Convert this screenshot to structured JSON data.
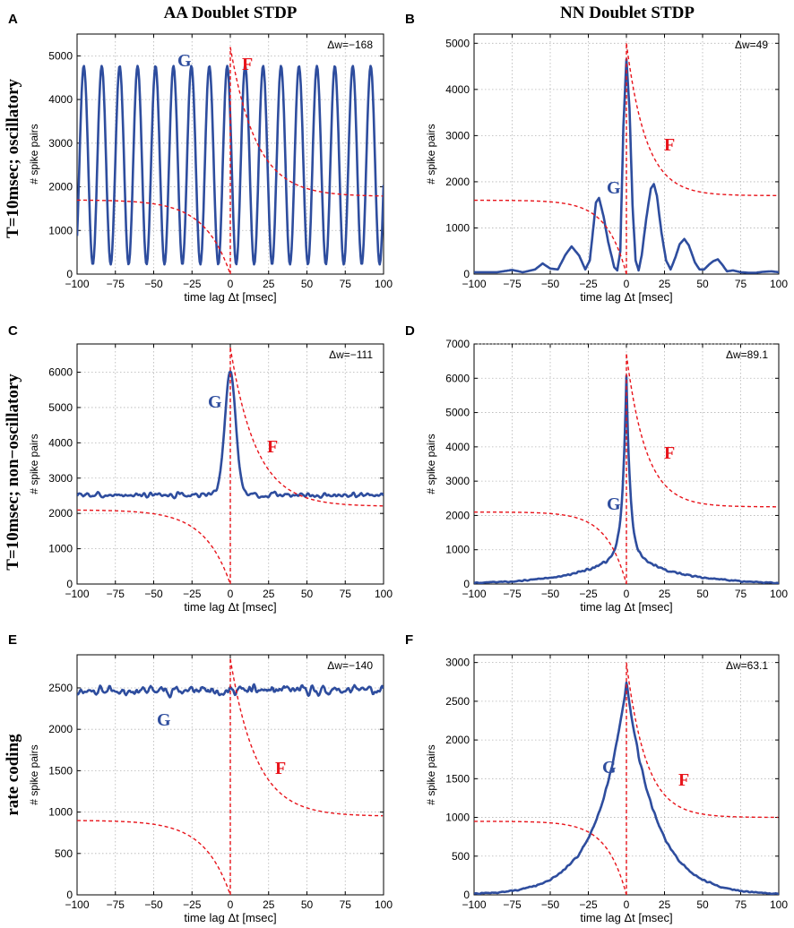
{
  "figure": {
    "column_titles": [
      "AA Doublet STDP",
      "NN Doublet STDP"
    ],
    "row_labels": [
      "T=10msec; oscillatory",
      "T=10msec; non−oscillatory",
      "rate coding"
    ]
  },
  "colors": {
    "G": "#2e4d9e",
    "F": "#e8141b",
    "grid": "#b4b4b4",
    "axis": "#000000"
  },
  "chart_data": [
    {
      "panel": "A",
      "type": "line",
      "xlabel": "time lag Δt [msec]",
      "ylabel": "# spike pairs",
      "xlim": [
        -100,
        100
      ],
      "ylim": [
        0,
        5500
      ],
      "xticks": [
        -100,
        -75,
        -50,
        -25,
        0,
        25,
        50,
        75,
        100
      ],
      "yticks": [
        0,
        1000,
        2000,
        3000,
        4000,
        5000
      ],
      "annotation": "Δw=−168",
      "series": [
        {
          "name": "G",
          "model": "oscillatory",
          "params": {
            "period": 11.7,
            "phase": -2,
            "min": 220,
            "max": 4770
          }
        },
        {
          "name": "F",
          "model": "window",
          "params": {
            "A_plus": 5200,
            "A_minus": 1700,
            "tau": 17,
            "baseline": 1780
          }
        }
      ],
      "labels": {
        "G": "G",
        "F": "F"
      }
    },
    {
      "panel": "B",
      "type": "line",
      "xlabel": "time lag Δt [msec]",
      "ylabel": "# spike pairs",
      "xlim": [
        -100,
        100
      ],
      "ylim": [
        0,
        5200
      ],
      "xticks": [
        -100,
        -75,
        -50,
        -25,
        0,
        25,
        50,
        75,
        100
      ],
      "yticks": [
        0,
        1000,
        2000,
        3000,
        4000,
        5000
      ],
      "annotation": "Δw=49",
      "series": [
        {
          "name": "G",
          "model": "points",
          "points": [
            [
              -100,
              40
            ],
            [
              -85,
              40
            ],
            [
              -75,
              90
            ],
            [
              -68,
              40
            ],
            [
              -60,
              100
            ],
            [
              -55,
              230
            ],
            [
              -50,
              120
            ],
            [
              -45,
              100
            ],
            [
              -40,
              420
            ],
            [
              -36,
              600
            ],
            [
              -31,
              400
            ],
            [
              -27,
              100
            ],
            [
              -24,
              300
            ],
            [
              -20,
              1550
            ],
            [
              -18,
              1650
            ],
            [
              -15,
              1250
            ],
            [
              -12,
              700
            ],
            [
              -8,
              150
            ],
            [
              -6,
              80
            ],
            [
              -4,
              500
            ],
            [
              -2,
              3200
            ],
            [
              0,
              4650
            ],
            [
              2,
              3600
            ],
            [
              4,
              1500
            ],
            [
              6,
              300
            ],
            [
              8,
              80
            ],
            [
              10,
              400
            ],
            [
              13,
              1200
            ],
            [
              16,
              1850
            ],
            [
              18,
              1950
            ],
            [
              20,
              1700
            ],
            [
              23,
              900
            ],
            [
              26,
              300
            ],
            [
              29,
              100
            ],
            [
              32,
              350
            ],
            [
              35,
              650
            ],
            [
              38,
              760
            ],
            [
              41,
              620
            ],
            [
              45,
              250
            ],
            [
              48,
              100
            ],
            [
              51,
              100
            ],
            [
              54,
              200
            ],
            [
              57,
              280
            ],
            [
              60,
              320
            ],
            [
              63,
              200
            ],
            [
              66,
              60
            ],
            [
              70,
              80
            ],
            [
              75,
              40
            ],
            [
              80,
              30
            ],
            [
              85,
              30
            ],
            [
              90,
              50
            ],
            [
              95,
              60
            ],
            [
              100,
              40
            ]
          ]
        },
        {
          "name": "F",
          "model": "window",
          "params": {
            "A_plus": 5000,
            "A_minus": 1600,
            "tau": 13,
            "baseline": 1700
          }
        }
      ],
      "labels": {
        "G": "G",
        "F": "F"
      }
    },
    {
      "panel": "C",
      "type": "line",
      "xlabel": "time lag Δt [msec]",
      "ylabel": "# spike pairs",
      "xlim": [
        -100,
        100
      ],
      "ylim": [
        0,
        6800
      ],
      "xticks": [
        -100,
        -75,
        -50,
        -25,
        0,
        25,
        50,
        75,
        100
      ],
      "yticks": [
        0,
        1000,
        2000,
        3000,
        4000,
        5000,
        6000
      ],
      "annotation": "Δw=−111",
      "series": [
        {
          "name": "G",
          "model": "noisy",
          "params": {
            "baseline": 2520,
            "noise": 55,
            "seed": 3
          },
          "peaks": [
            {
              "pos": 0,
              "height": 3500,
              "width": 5
            }
          ]
        },
        {
          "name": "F",
          "model": "window",
          "params": {
            "A_plus": 6700,
            "A_minus": 2100,
            "tau": 17,
            "baseline": 2200
          }
        }
      ],
      "labels": {
        "G": "G",
        "F": "F"
      }
    },
    {
      "panel": "D",
      "type": "line",
      "xlabel": "time lag Δt [msec]",
      "ylabel": "# spike pairs",
      "xlim": [
        -100,
        100
      ],
      "ylim": [
        0,
        7000
      ],
      "xticks": [
        -100,
        -75,
        -50,
        -25,
        0,
        25,
        50,
        75,
        100
      ],
      "yticks": [
        0,
        1000,
        2000,
        3000,
        4000,
        5000,
        6000,
        7000
      ],
      "annotation": "Δw=89.1",
      "series": [
        {
          "name": "G",
          "model": "sharp",
          "params": {
            "peak": 6100,
            "tau_narrow": 2.5,
            "slow_amp": 1000,
            "tau_slow": 30,
            "noise": 40,
            "seed": 5
          }
        },
        {
          "name": "F",
          "model": "window",
          "params": {
            "A_plus": 6700,
            "A_minus": 2100,
            "tau": 13,
            "baseline": 2250
          }
        }
      ],
      "labels": {
        "G": "G",
        "F": "F"
      }
    },
    {
      "panel": "E",
      "type": "line",
      "xlabel": "time lag Δt [msec]",
      "ylabel": "# spike pairs",
      "xlim": [
        -100,
        100
      ],
      "ylim": [
        0,
        2900
      ],
      "xticks": [
        -100,
        -75,
        -50,
        -25,
        0,
        25,
        50,
        75,
        100
      ],
      "yticks": [
        0,
        500,
        1000,
        1500,
        2000,
        2500
      ],
      "annotation": "Δw=−140",
      "series": [
        {
          "name": "G",
          "model": "noisy",
          "params": {
            "baseline": 2470,
            "noise": 45,
            "seed": 11
          },
          "peaks": []
        },
        {
          "name": "F",
          "model": "window",
          "params": {
            "A_plus": 2850,
            "A_minus": 900,
            "tau": 17,
            "baseline": 950
          }
        }
      ],
      "labels": {
        "G": "G",
        "F": "F"
      }
    },
    {
      "panel": "F",
      "type": "line",
      "xlabel": "time lag Δt [msec]",
      "ylabel": "# spike pairs",
      "xlim": [
        -100,
        100
      ],
      "ylim": [
        0,
        3100
      ],
      "xticks": [
        -100,
        -75,
        -50,
        -25,
        0,
        25,
        50,
        75,
        100
      ],
      "yticks": [
        0,
        500,
        1000,
        1500,
        2000,
        2500,
        3000
      ],
      "annotation": "Δw=63.1",
      "series": [
        {
          "name": "G",
          "model": "exp",
          "params": {
            "peak": 2750,
            "tau": 19,
            "noise": 25,
            "seed": 7
          }
        },
        {
          "name": "F",
          "model": "window",
          "params": {
            "A_plus": 3000,
            "A_minus": 950,
            "tau": 13,
            "baseline": 1000
          }
        }
      ],
      "labels": {
        "G": "G",
        "F": "F"
      }
    }
  ]
}
